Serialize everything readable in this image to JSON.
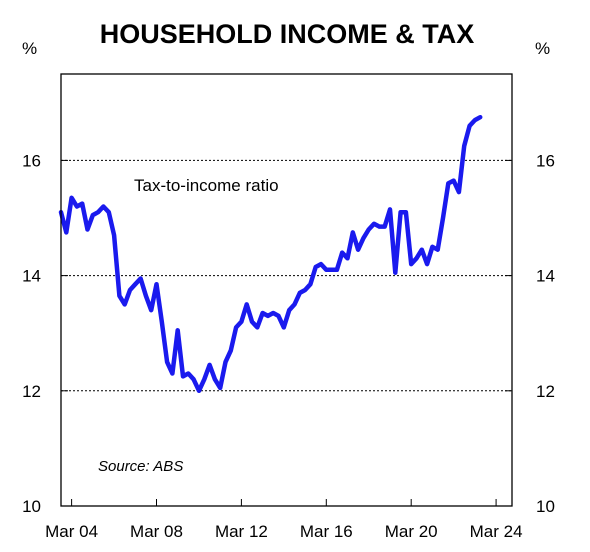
{
  "chart_data": {
    "type": "line",
    "title": "HOUSEHOLD INCOME & TAX",
    "ylabel_left": "%",
    "ylabel_right": "%",
    "ylim": [
      10,
      17.5
    ],
    "yticks": [
      10,
      12,
      14,
      16
    ],
    "ytick_labels": [
      "10",
      "12",
      "14",
      "16"
    ],
    "xlim": [
      2003.75,
      2025.0
    ],
    "xticks": [
      2004.25,
      2008.25,
      2012.25,
      2016.25,
      2020.25,
      2024.25
    ],
    "xtick_labels": [
      "Mar 04",
      "Mar 08",
      "Mar 12",
      "Mar 16",
      "Mar 20",
      "Mar 24"
    ],
    "grid": "horizontal dotted",
    "color": "#1a1aee",
    "annotation": "Tax-to-income ratio",
    "source": "Source: ABS",
    "series": [
      {
        "x": [
          2003.75,
          2004.0,
          2004.25,
          2004.5,
          2004.75,
          2005.0,
          2005.25,
          2005.5,
          2005.75,
          2006.0,
          2006.25,
          2006.5,
          2006.75,
          2007.0,
          2007.25,
          2007.5,
          2007.75,
          2008.0,
          2008.25,
          2008.5,
          2008.75,
          2009.0,
          2009.25,
          2009.5,
          2009.75,
          2010.0,
          2010.25,
          2010.5,
          2010.75,
          2011.0,
          2011.25,
          2011.5,
          2011.75,
          2012.0,
          2012.25,
          2012.5,
          2012.75,
          2013.0,
          2013.25,
          2013.5,
          2013.75,
          2014.0,
          2014.25,
          2014.5,
          2014.75,
          2015.0,
          2015.25,
          2015.5,
          2015.75,
          2016.0,
          2016.25,
          2016.5,
          2016.75,
          2017.0,
          2017.25,
          2017.5,
          2017.75,
          2018.0,
          2018.25,
          2018.5,
          2018.75,
          2019.0,
          2019.25,
          2019.5,
          2019.75,
          2020.0,
          2020.25,
          2020.5,
          2020.75,
          2021.0,
          2021.25,
          2021.5,
          2021.75,
          2022.0,
          2022.25,
          2022.5,
          2022.75,
          2023.0,
          2023.25,
          2023.5
        ],
        "y": [
          15.1,
          14.75,
          15.35,
          15.2,
          15.25,
          14.8,
          15.05,
          15.1,
          15.2,
          15.1,
          14.7,
          13.65,
          13.5,
          13.75,
          13.85,
          13.95,
          13.65,
          13.4,
          13.85,
          13.2,
          12.5,
          12.3,
          13.05,
          12.25,
          12.3,
          12.2,
          12.0,
          12.2,
          12.45,
          12.2,
          12.05,
          12.5,
          12.7,
          13.1,
          13.2,
          13.5,
          13.2,
          13.1,
          13.35,
          13.3,
          13.35,
          13.3,
          13.1,
          13.4,
          13.5,
          13.7,
          13.75,
          13.85,
          14.15,
          14.2,
          14.1,
          14.1,
          14.1,
          14.4,
          14.3,
          14.75,
          14.45,
          14.65,
          14.8,
          14.9,
          14.85,
          14.85,
          15.15,
          14.05,
          15.1,
          15.1,
          14.2,
          14.3,
          14.45,
          14.2,
          14.5,
          14.45,
          15.0,
          15.6,
          15.65,
          15.45,
          16.25,
          16.6,
          16.7,
          16.75
        ]
      }
    ]
  }
}
